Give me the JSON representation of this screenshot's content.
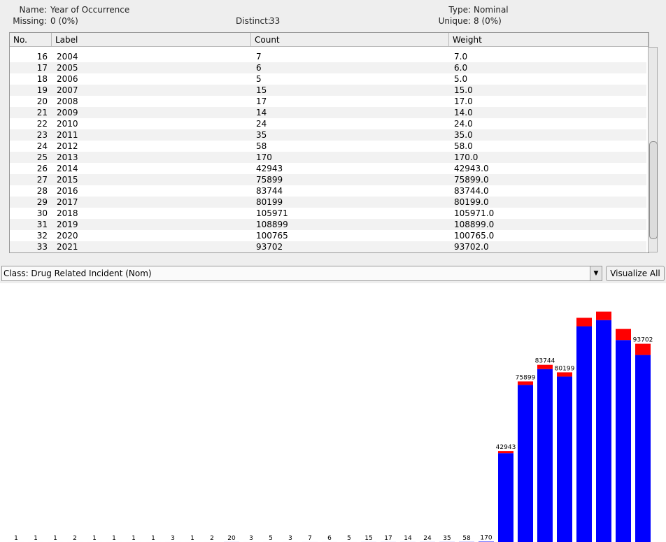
{
  "header": {
    "name_label": "Name:",
    "name": "Year of Occurrence",
    "missing_label": "Missing:",
    "missing": "0 (0%)",
    "distinct_label": "Distinct:",
    "distinct": "33",
    "type_label": "Type:",
    "type": "Nominal",
    "unique_label": "Unique:",
    "unique": "8 (0%)"
  },
  "table": {
    "columns": [
      "No.",
      "Label",
      "Count",
      "Weight"
    ],
    "rows": [
      [
        "16",
        "2004",
        "7",
        "7.0"
      ],
      [
        "17",
        "2005",
        "6",
        "6.0"
      ],
      [
        "18",
        "2006",
        "5",
        "5.0"
      ],
      [
        "19",
        "2007",
        "15",
        "15.0"
      ],
      [
        "20",
        "2008",
        "17",
        "17.0"
      ],
      [
        "21",
        "2009",
        "14",
        "14.0"
      ],
      [
        "22",
        "2010",
        "24",
        "24.0"
      ],
      [
        "23",
        "2011",
        "35",
        "35.0"
      ],
      [
        "24",
        "2012",
        "58",
        "58.0"
      ],
      [
        "25",
        "2013",
        "170",
        "170.0"
      ],
      [
        "26",
        "2014",
        "42943",
        "42943.0"
      ],
      [
        "27",
        "2015",
        "75899",
        "75899.0"
      ],
      [
        "28",
        "2016",
        "83744",
        "83744.0"
      ],
      [
        "29",
        "2017",
        "80199",
        "80199.0"
      ],
      [
        "30",
        "2018",
        "105971",
        "105971.0"
      ],
      [
        "31",
        "2019",
        "108899",
        "108899.0"
      ],
      [
        "32",
        "2020",
        "100765",
        "100765.0"
      ],
      [
        "33",
        "2021",
        "93702",
        "93702.0"
      ]
    ]
  },
  "class_selector": "Class: Drug Related Incident (Nom)",
  "visualize_button": "Visualize All",
  "chart_data": {
    "type": "stacked-bar",
    "series": [
      {
        "color": "#0000ff",
        "values": [
          1,
          1,
          1,
          2,
          1,
          1,
          1,
          1,
          3,
          1,
          2,
          20,
          3,
          5,
          3,
          7,
          6,
          5,
          15,
          17,
          14,
          24,
          35,
          58,
          170,
          41943,
          74249,
          81744,
          78199,
          101971,
          104899,
          95465,
          88402
        ]
      },
      {
        "color": "#ff0000",
        "values": [
          0,
          0,
          0,
          0,
          0,
          0,
          0,
          0,
          0,
          0,
          0,
          0,
          0,
          0,
          0,
          0,
          0,
          0,
          0,
          0,
          0,
          0,
          0,
          0,
          0,
          1000,
          1650,
          2000,
          2000,
          4000,
          4000,
          5300,
          5300
        ]
      }
    ],
    "value_labels": [
      "1",
      "1",
      "1",
      "2",
      "1",
      "1",
      "1",
      "1",
      "3",
      "1",
      "2",
      "20",
      "3",
      "5",
      "3",
      "7",
      "6",
      "5",
      "15",
      "17",
      "14",
      "24",
      "35",
      "58",
      "170",
      "42943",
      "75899",
      "83744",
      "80199",
      null,
      null,
      null,
      "93702"
    ],
    "ylim": [
      0,
      120000
    ]
  }
}
